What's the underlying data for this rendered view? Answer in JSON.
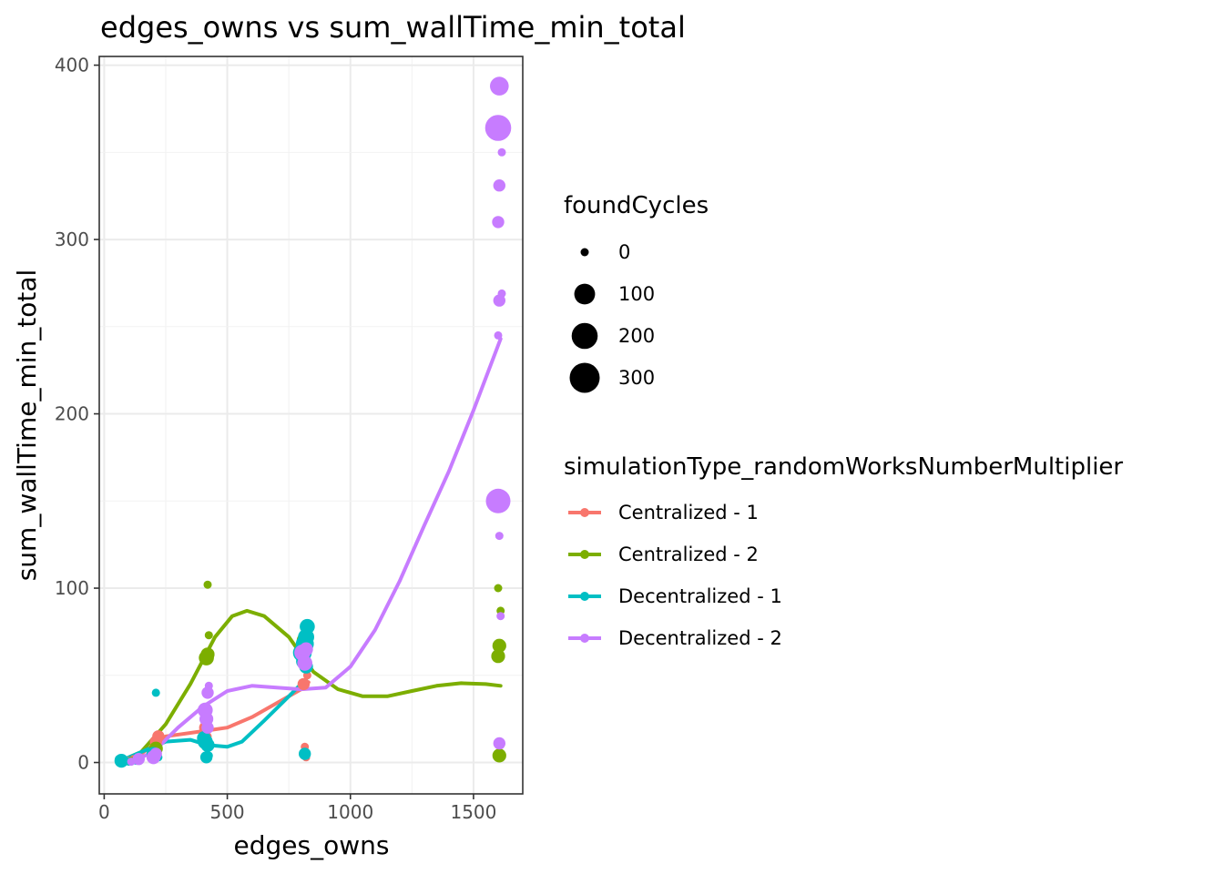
{
  "chart_data": {
    "type": "scatter",
    "title": "edges_owns  vs  sum_wallTime_min_total",
    "xlabel": "edges_owns",
    "ylabel": "sum_wallTime_min_total",
    "xlim": [
      -20,
      1700
    ],
    "ylim": [
      -18,
      405
    ],
    "x_ticks": [
      0,
      500,
      1000,
      1500
    ],
    "y_ticks": [
      0,
      100,
      200,
      300,
      400
    ],
    "grid": true,
    "legend_position": "right",
    "size_legend": {
      "title": "foundCycles",
      "entries": [
        {
          "label": "0",
          "value": 0
        },
        {
          "label": "100",
          "value": 100
        },
        {
          "label": "200",
          "value": 200
        },
        {
          "label": "300",
          "value": 300
        }
      ]
    },
    "color_legend": {
      "title": "simulationType_randomWorksNumberMultiplier"
    },
    "series": [
      {
        "name": "Centralized - 1",
        "color": "#F8766D",
        "points": [
          [
            60,
            1,
            0
          ],
          [
            70,
            0.5,
            0
          ],
          [
            100,
            1,
            0
          ],
          [
            120,
            2,
            0
          ],
          [
            210,
            12,
            10
          ],
          [
            220,
            15,
            10
          ],
          [
            215,
            8,
            0
          ],
          [
            410,
            20,
            10
          ],
          [
            420,
            15,
            0
          ],
          [
            415,
            10,
            0
          ],
          [
            815,
            9,
            0
          ],
          [
            820,
            3,
            0
          ],
          [
            810,
            45,
            10
          ],
          [
            825,
            50,
            0
          ]
        ],
        "trend": [
          [
            60,
            0.5
          ],
          [
            150,
            5
          ],
          [
            250,
            15
          ],
          [
            400,
            18
          ],
          [
            500,
            20
          ],
          [
            600,
            26
          ],
          [
            700,
            34
          ],
          [
            800,
            42
          ],
          [
            830,
            46
          ]
        ]
      },
      {
        "name": "Centralized - 2",
        "color": "#7CAE00",
        "points": [
          [
            60,
            0.5,
            0
          ],
          [
            110,
            1,
            0
          ],
          [
            210,
            8,
            20
          ],
          [
            415,
            60,
            30
          ],
          [
            420,
            62,
            20
          ],
          [
            425,
            73,
            0
          ],
          [
            420,
            102,
            0
          ],
          [
            805,
            65,
            30
          ],
          [
            815,
            70,
            40
          ],
          [
            1600,
            100,
            0
          ],
          [
            1610,
            87,
            0
          ],
          [
            1605,
            67,
            20
          ],
          [
            1600,
            61,
            20
          ],
          [
            1605,
            4,
            20
          ],
          [
            1610,
            3,
            0
          ]
        ],
        "trend": [
          [
            60,
            0.5
          ],
          [
            150,
            6
          ],
          [
            250,
            22
          ],
          [
            350,
            45
          ],
          [
            450,
            72
          ],
          [
            520,
            84
          ],
          [
            580,
            87
          ],
          [
            650,
            84
          ],
          [
            750,
            72
          ],
          [
            850,
            52
          ],
          [
            950,
            42
          ],
          [
            1050,
            38
          ],
          [
            1150,
            38
          ],
          [
            1250,
            41
          ],
          [
            1350,
            44
          ],
          [
            1450,
            45.5
          ],
          [
            1550,
            45
          ],
          [
            1610,
            44
          ]
        ]
      },
      {
        "name": "Decentralized - 1",
        "color": "#00BFC4",
        "points": [
          [
            60,
            2,
            0
          ],
          [
            70,
            1,
            20
          ],
          [
            100,
            0.5,
            0
          ],
          [
            130,
            1,
            0
          ],
          [
            210,
            40,
            0
          ],
          [
            200,
            5,
            20
          ],
          [
            220,
            3,
            0
          ],
          [
            405,
            14,
            20
          ],
          [
            410,
            12,
            30
          ],
          [
            420,
            10,
            20
          ],
          [
            415,
            3,
            10
          ],
          [
            425,
            4,
            0
          ],
          [
            805,
            63,
            70
          ],
          [
            815,
            68,
            60
          ],
          [
            820,
            72,
            40
          ],
          [
            825,
            78,
            30
          ],
          [
            810,
            58,
            30
          ],
          [
            820,
            55,
            20
          ],
          [
            815,
            5,
            10
          ],
          [
            820,
            4,
            0
          ]
        ],
        "trend": [
          [
            60,
            0.5
          ],
          [
            150,
            6
          ],
          [
            250,
            12
          ],
          [
            350,
            13
          ],
          [
            420,
            10
          ],
          [
            500,
            9
          ],
          [
            560,
            12
          ],
          [
            650,
            24
          ],
          [
            750,
            38
          ],
          [
            820,
            48
          ]
        ]
      },
      {
        "name": "Decentralized - 2",
        "color": "#C77CFF",
        "points": [
          [
            110,
            0.5,
            0
          ],
          [
            140,
            2,
            10
          ],
          [
            200,
            3,
            20
          ],
          [
            210,
            5,
            10
          ],
          [
            410,
            30,
            30
          ],
          [
            415,
            25,
            20
          ],
          [
            420,
            40,
            10
          ],
          [
            425,
            44,
            0
          ],
          [
            420,
            20,
            10
          ],
          [
            805,
            63,
            40
          ],
          [
            815,
            57,
            30
          ],
          [
            820,
            65,
            20
          ],
          [
            1605,
            388,
            70
          ],
          [
            1600,
            364,
            200
          ],
          [
            1615,
            350,
            0
          ],
          [
            1605,
            331,
            10
          ],
          [
            1600,
            310,
            10
          ],
          [
            1615,
            269,
            0
          ],
          [
            1605,
            265,
            10
          ],
          [
            1600,
            245,
            0
          ],
          [
            1600,
            150,
            170
          ],
          [
            1605,
            130,
            0
          ],
          [
            1610,
            84,
            0
          ],
          [
            1605,
            11,
            10
          ],
          [
            1610,
            10,
            0
          ]
        ],
        "trend": [
          [
            110,
            0.5
          ],
          [
            200,
            6
          ],
          [
            300,
            20
          ],
          [
            400,
            32
          ],
          [
            500,
            41
          ],
          [
            600,
            44
          ],
          [
            700,
            43
          ],
          [
            800,
            42
          ],
          [
            900,
            43
          ],
          [
            1000,
            55
          ],
          [
            1100,
            76
          ],
          [
            1200,
            104
          ],
          [
            1300,
            136
          ],
          [
            1400,
            167
          ],
          [
            1500,
            202
          ],
          [
            1610,
            243
          ]
        ]
      }
    ]
  }
}
